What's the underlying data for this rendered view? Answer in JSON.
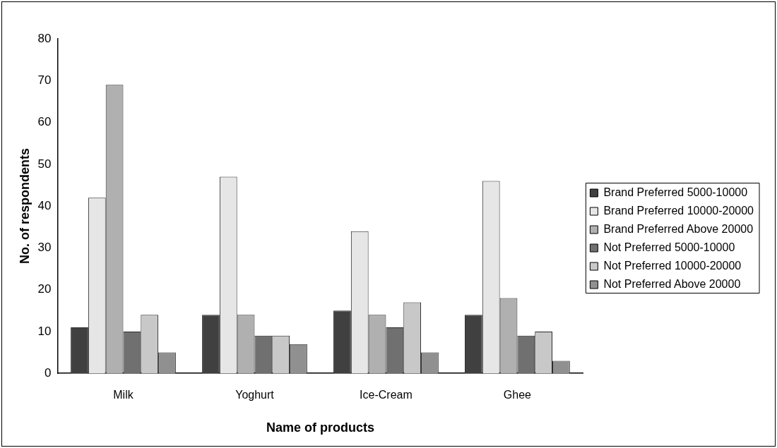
{
  "chart_data": {
    "type": "bar",
    "xlabel": "Name of products",
    "ylabel": "No. of respondents",
    "categories": [
      "Milk",
      "Yoghurt",
      "Ice-Cream",
      "Ghee"
    ],
    "series": [
      {
        "name": "Brand Preferred 5000-10000",
        "color": "#404040",
        "values": [
          11,
          14,
          15,
          14
        ]
      },
      {
        "name": "Brand Preferred 10000-20000",
        "color": "#e6e6e6",
        "values": [
          42,
          47,
          34,
          46
        ]
      },
      {
        "name": "Brand Preferred Above 20000",
        "color": "#b0b0b0",
        "values": [
          69,
          14,
          14,
          18
        ]
      },
      {
        "name": "Not Preferred 5000-10000",
        "color": "#707070",
        "values": [
          10,
          9,
          11,
          9
        ]
      },
      {
        "name": "Not Preferred 10000-20000",
        "color": "#c8c8c8",
        "values": [
          14,
          9,
          17,
          10
        ]
      },
      {
        "name": "Not Preferred Above 20000",
        "color": "#909090",
        "values": [
          5,
          7,
          5,
          3
        ]
      }
    ],
    "ylim": [
      0,
      80
    ],
    "yticks": [
      0,
      10,
      20,
      30,
      40,
      50,
      60,
      70,
      80
    ],
    "grid": false,
    "legend": "right"
  }
}
